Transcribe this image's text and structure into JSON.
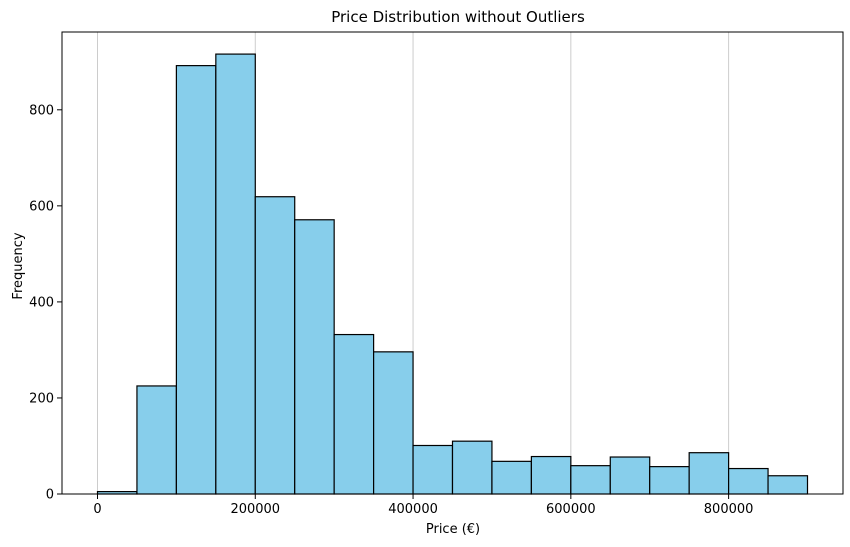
{
  "chart_data": {
    "type": "bar",
    "title": "Price Distribution without Outliers",
    "xlabel": "Price (€)",
    "ylabel": "Frequency",
    "bin_edges": [
      0,
      50000,
      100000,
      150000,
      200000,
      250000,
      300000,
      350000,
      400000,
      450000,
      500000,
      550000,
      600000,
      650000,
      700000,
      750000,
      800000,
      850000,
      900000
    ],
    "values": [
      5,
      225,
      892,
      916,
      619,
      571,
      332,
      296,
      101,
      110,
      68,
      78,
      59,
      77,
      57,
      86,
      53,
      38
    ],
    "xlim": [
      -45000,
      945000
    ],
    "ylim": [
      0,
      962
    ],
    "xticks": [
      0,
      200000,
      400000,
      600000,
      800000
    ],
    "xtick_labels": [
      "0",
      "200000",
      "400000",
      "600000",
      "800000"
    ],
    "yticks": [
      0,
      200,
      400,
      600,
      800
    ],
    "ytick_labels": [
      "0",
      "200",
      "400",
      "600",
      "800"
    ],
    "grid": "x",
    "colors": {
      "bar_fill": "#87CEEB",
      "bar_edge": "#000000",
      "grid": "#cccccc"
    }
  }
}
